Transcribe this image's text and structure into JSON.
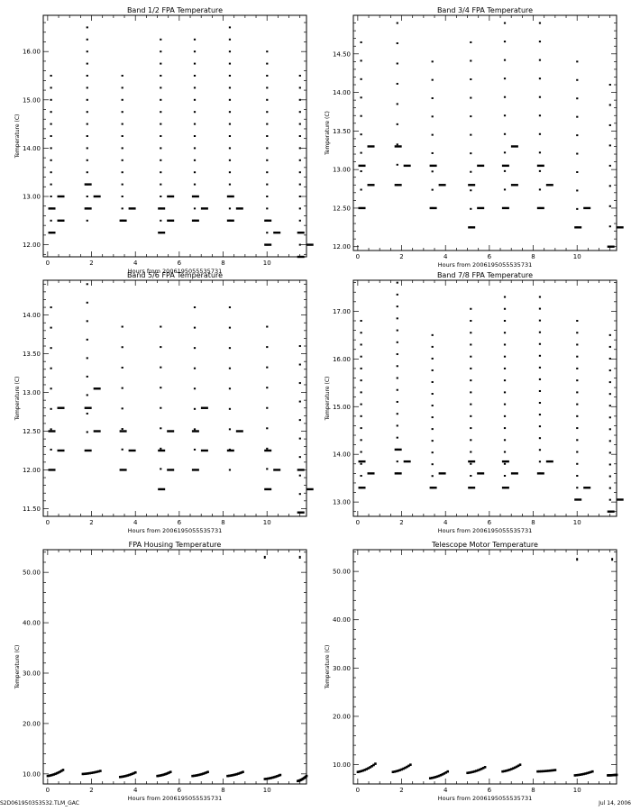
{
  "footer": {
    "left": "S2D061950353532.TLM_GAC",
    "right": "Jul 14, 2006"
  },
  "chart_data": [
    {
      "type": "scatter",
      "title": "Band 1/2 FPA Temperature",
      "xlabel": "Hours from 2006195055535731",
      "ylabel": "Temperature (C)",
      "xlim": [
        -0.2,
        11.8
      ],
      "ylim": [
        11.75,
        16.75
      ],
      "xticks": [
        0,
        2,
        4,
        6,
        8,
        10
      ],
      "yticks": [
        12.0,
        13.0,
        14.0,
        15.0,
        16.0
      ],
      "ytick_labels": [
        "12.00",
        "13.00",
        "14.00",
        "15.00",
        "16.00"
      ],
      "clusters": [
        {
          "x": 0.15,
          "ymin": 12.25,
          "ymax": 15.5,
          "dense_levels": [
            12.25,
            12.5,
            12.75,
            13.0
          ]
        },
        {
          "x": 1.8,
          "ymin": 12.5,
          "ymax": 16.5,
          "dense_levels": [
            12.75,
            13.0,
            13.25
          ]
        },
        {
          "x": 3.4,
          "ymin": 12.5,
          "ymax": 15.5,
          "dense_levels": [
            12.5,
            12.75
          ]
        },
        {
          "x": 5.15,
          "ymin": 12.25,
          "ymax": 16.25,
          "dense_levels": [
            12.25,
            12.5,
            12.75,
            13.0
          ]
        },
        {
          "x": 6.7,
          "ymin": 12.5,
          "ymax": 16.25,
          "dense_levels": [
            12.5,
            12.75,
            13.0
          ]
        },
        {
          "x": 8.3,
          "ymin": 12.5,
          "ymax": 16.5,
          "dense_levels": [
            12.5,
            12.75,
            13.0
          ]
        },
        {
          "x": 10.0,
          "ymin": 12.0,
          "ymax": 16.0,
          "dense_levels": [
            12.0,
            12.25,
            12.5
          ]
        },
        {
          "x": 11.5,
          "ymin": 11.75,
          "ymax": 15.5,
          "dense_levels": [
            11.75,
            12.0,
            12.25
          ]
        }
      ]
    },
    {
      "type": "scatter",
      "title": "Band 3/4 FPA Temperature",
      "xlabel": "Hours from 2006195055535731",
      "ylabel": "Temperature (C)",
      "xlim": [
        -0.2,
        11.8
      ],
      "ylim": [
        11.95,
        15.0
      ],
      "xticks": [
        0,
        2,
        4,
        6,
        8,
        10
      ],
      "yticks": [
        12.0,
        12.5,
        13.0,
        13.5,
        14.0,
        14.5
      ],
      "ytick_labels": [
        "12.00",
        "12.50",
        "13.00",
        "13.50",
        "14.00",
        "14.50"
      ],
      "clusters": [
        {
          "x": 0.15,
          "ymin": 12.5,
          "ymax": 14.65,
          "dense_levels": [
            12.5,
            12.8,
            13.05,
            13.3
          ]
        },
        {
          "x": 1.8,
          "ymin": 12.8,
          "ymax": 14.9,
          "dense_levels": [
            12.8,
            13.05,
            13.3
          ]
        },
        {
          "x": 3.4,
          "ymin": 12.5,
          "ymax": 14.4,
          "dense_levels": [
            12.5,
            12.8,
            13.05
          ]
        },
        {
          "x": 5.15,
          "ymin": 12.25,
          "ymax": 14.65,
          "dense_levels": [
            12.25,
            12.5,
            12.8,
            13.05
          ]
        },
        {
          "x": 6.7,
          "ymin": 12.5,
          "ymax": 14.9,
          "dense_levels": [
            12.5,
            12.8,
            13.05,
            13.3
          ]
        },
        {
          "x": 8.3,
          "ymin": 12.5,
          "ymax": 14.9,
          "dense_levels": [
            12.5,
            12.8,
            13.05
          ]
        },
        {
          "x": 10.0,
          "ymin": 12.25,
          "ymax": 14.4,
          "dense_levels": [
            12.25,
            12.5
          ]
        },
        {
          "x": 11.5,
          "ymin": 12.0,
          "ymax": 14.1,
          "dense_levels": [
            12.0,
            12.25
          ]
        }
      ]
    },
    {
      "type": "scatter",
      "title": "Band 5/6 FPA Temperature",
      "xlabel": "Hours from 2006195055535731",
      "ylabel": "Temperature (C)",
      "xlim": [
        -0.2,
        11.8
      ],
      "ylim": [
        11.4,
        14.45
      ],
      "xticks": [
        0,
        2,
        4,
        6,
        8,
        10
      ],
      "yticks": [
        11.5,
        12.0,
        12.5,
        13.0,
        13.5,
        14.0
      ],
      "ytick_labels": [
        "11.50",
        "12.00",
        "12.50",
        "13.00",
        "13.50",
        "14.00"
      ],
      "clusters": [
        {
          "x": 0.15,
          "ymin": 12.0,
          "ymax": 14.1,
          "dense_levels": [
            12.0,
            12.25,
            12.5,
            12.8
          ]
        },
        {
          "x": 1.8,
          "ymin": 12.25,
          "ymax": 14.4,
          "dense_levels": [
            12.25,
            12.5,
            12.8,
            13.05
          ]
        },
        {
          "x": 3.4,
          "ymin": 12.0,
          "ymax": 13.85,
          "dense_levels": [
            12.0,
            12.25,
            12.5
          ]
        },
        {
          "x": 5.15,
          "ymin": 11.75,
          "ymax": 13.85,
          "dense_levels": [
            11.75,
            12.0,
            12.25,
            12.5
          ]
        },
        {
          "x": 6.7,
          "ymin": 12.0,
          "ymax": 14.1,
          "dense_levels": [
            12.0,
            12.25,
            12.5,
            12.8
          ]
        },
        {
          "x": 8.3,
          "ymin": 12.0,
          "ymax": 14.1,
          "dense_levels": [
            12.25,
            12.5
          ]
        },
        {
          "x": 10.0,
          "ymin": 11.75,
          "ymax": 13.85,
          "dense_levels": [
            11.75,
            12.0,
            12.25
          ]
        },
        {
          "x": 11.5,
          "ymin": 11.45,
          "ymax": 13.6,
          "dense_levels": [
            11.45,
            11.75,
            12.0
          ]
        }
      ]
    },
    {
      "type": "scatter",
      "title": "Band 7/8 FPA Temperature",
      "xlabel": "Hours from 2006195055535731",
      "ylabel": "Temperature (C)",
      "xlim": [
        -0.2,
        11.8
      ],
      "ylim": [
        12.7,
        17.65
      ],
      "xticks": [
        0,
        2,
        4,
        6,
        8,
        10
      ],
      "yticks": [
        13.0,
        14.0,
        15.0,
        16.0,
        17.0
      ],
      "ytick_labels": [
        "13.00",
        "14.00",
        "15.00",
        "16.00",
        "17.00"
      ],
      "clusters": [
        {
          "x": 0.15,
          "ymin": 13.3,
          "ymax": 16.8,
          "dense_levels": [
            13.3,
            13.6,
            13.85
          ]
        },
        {
          "x": 1.8,
          "ymin": 13.6,
          "ymax": 17.6,
          "dense_levels": [
            13.6,
            13.85,
            14.1
          ]
        },
        {
          "x": 3.4,
          "ymin": 13.3,
          "ymax": 16.5,
          "dense_levels": [
            13.3,
            13.6
          ]
        },
        {
          "x": 5.15,
          "ymin": 13.3,
          "ymax": 17.05,
          "dense_levels": [
            13.3,
            13.6,
            13.85
          ]
        },
        {
          "x": 6.7,
          "ymin": 13.3,
          "ymax": 17.3,
          "dense_levels": [
            13.3,
            13.6,
            13.85
          ]
        },
        {
          "x": 8.3,
          "ymin": 13.6,
          "ymax": 17.3,
          "dense_levels": [
            13.6,
            13.85
          ]
        },
        {
          "x": 10.0,
          "ymin": 13.05,
          "ymax": 16.8,
          "dense_levels": [
            13.05,
            13.3
          ]
        },
        {
          "x": 11.5,
          "ymin": 12.8,
          "ymax": 16.5,
          "dense_levels": [
            12.8,
            13.05
          ]
        }
      ]
    },
    {
      "type": "scatter",
      "title": "FPA Housing Temperature",
      "xlabel": "Hours from 2006195055535731",
      "ylabel": "Temperature (C)",
      "xlim": [
        -0.2,
        11.8
      ],
      "ylim": [
        8.0,
        54.5
      ],
      "xticks": [
        0,
        2,
        4,
        6,
        8,
        10
      ],
      "yticks": [
        10.0,
        20.0,
        30.0,
        40.0,
        50.0
      ],
      "ytick_labels": [
        "10.00",
        "20.00",
        "30.00",
        "40.00",
        "50.00"
      ],
      "segments": [
        {
          "x0": 0.0,
          "x1": 0.7,
          "y0": 9.6,
          "y1": 10.8
        },
        {
          "x0": 1.6,
          "x1": 2.4,
          "y0": 10.0,
          "y1": 10.6
        },
        {
          "x0": 3.3,
          "x1": 4.0,
          "y0": 9.4,
          "y1": 10.3
        },
        {
          "x0": 5.0,
          "x1": 5.6,
          "y0": 9.6,
          "y1": 10.4
        },
        {
          "x0": 6.6,
          "x1": 7.3,
          "y0": 9.6,
          "y1": 10.4
        },
        {
          "x0": 8.2,
          "x1": 8.9,
          "y0": 9.6,
          "y1": 10.4
        },
        {
          "x0": 9.9,
          "x1": 10.6,
          "y0": 9.0,
          "y1": 9.8
        },
        {
          "x0": 11.4,
          "x1": 11.8,
          "y0": 8.6,
          "y1": 9.6
        }
      ],
      "outliers": [
        {
          "x": 9.9,
          "y": 53.0
        },
        {
          "x": 11.5,
          "y": 53.0
        }
      ]
    },
    {
      "type": "scatter",
      "title": "Telescope Motor Temperature",
      "xlabel": "Hours from 2006195055535731",
      "ylabel": "Temperature (C)",
      "xlim": [
        -0.2,
        11.8
      ],
      "ylim": [
        6.0,
        54.5
      ],
      "xticks": [
        0,
        2,
        4,
        6,
        8,
        10
      ],
      "yticks": [
        10.0,
        20.0,
        30.0,
        40.0,
        50.0
      ],
      "ytick_labels": [
        "10.00",
        "20.00",
        "30.00",
        "40.00",
        "50.00"
      ],
      "segments": [
        {
          "x0": 0.0,
          "x1": 0.8,
          "y0": 8.5,
          "y1": 10.2
        },
        {
          "x0": 1.6,
          "x1": 2.4,
          "y0": 8.5,
          "y1": 10.0
        },
        {
          "x0": 3.3,
          "x1": 4.1,
          "y0": 7.2,
          "y1": 8.6
        },
        {
          "x0": 5.0,
          "x1": 5.8,
          "y0": 8.3,
          "y1": 9.5
        },
        {
          "x0": 6.6,
          "x1": 7.4,
          "y0": 8.6,
          "y1": 10.0
        },
        {
          "x0": 8.2,
          "x1": 9.0,
          "y0": 8.6,
          "y1": 8.9
        },
        {
          "x0": 9.9,
          "x1": 10.7,
          "y0": 7.8,
          "y1": 8.6
        },
        {
          "x0": 11.4,
          "x1": 11.8,
          "y0": 7.8,
          "y1": 7.9
        }
      ],
      "outliers": [
        {
          "x": 10.0,
          "y": 52.5
        },
        {
          "x": 11.6,
          "y": 52.5
        }
      ]
    }
  ]
}
